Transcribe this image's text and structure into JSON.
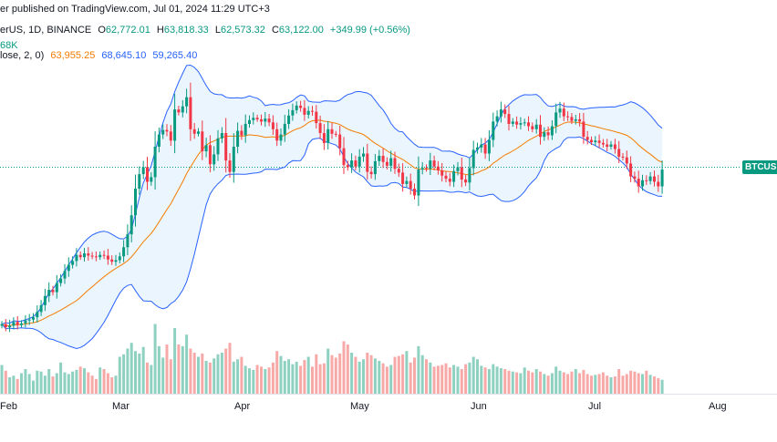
{
  "header": {
    "published": "er published on TradingView.com, Jul 01, 2024 11:29 UTC+3",
    "symbol": "erUS, 1D, BINANCE",
    "open_label": "O",
    "open": "62,772.01",
    "high_label": "H",
    "high": "63,818.33",
    "low_label": "L",
    "low": "62,573.32",
    "close_label": "C",
    "close": "63,122.00",
    "change": "+349.99 (+0.56%)",
    "volume": "68K",
    "bb_label": "lose, 2, 0)",
    "bb_basis": "63,955.25",
    "bb_upper": "68,645.10",
    "bb_lower": "59,265.40"
  },
  "price_tag": "BTCUSD",
  "colors": {
    "up": "#089981",
    "down": "#f23645",
    "basis": "#f57c00",
    "bands": "#2962ff",
    "band_fill": "#e3f2fd"
  },
  "chart_data": {
    "type": "candlestick",
    "x_ticks": [
      "Feb",
      "Mar",
      "Apr",
      "May",
      "Jun",
      "Jul",
      "Aug"
    ],
    "current_price": 63122.0,
    "ylim": [
      37500,
      74000
    ],
    "last_bollinger": {
      "basis": 63955.25,
      "upper": 68645.1,
      "lower": 59265.4
    },
    "closes": [
      42800,
      42400,
      42600,
      43100,
      42700,
      42900,
      43300,
      43400,
      43700,
      44400,
      45300,
      46500,
      47300,
      47000,
      48200,
      48800,
      49800,
      50600,
      51100,
      51900,
      51600,
      52100,
      51800,
      51700,
      51600,
      51900,
      51800,
      51300,
      51000,
      51200,
      51700,
      52900,
      54600,
      57100,
      60600,
      62500,
      63400,
      61500,
      62100,
      66100,
      67700,
      68300,
      68100,
      66900,
      71000,
      70600,
      71400,
      72600,
      68400,
      67800,
      68100,
      65500,
      66300,
      63800,
      65100,
      67200,
      67900,
      64300,
      62800,
      66100,
      68200,
      67600,
      69100,
      69600,
      69900,
      69700,
      69400,
      69800,
      69300,
      68400,
      66900,
      67700,
      69100,
      70200,
      70900,
      71500,
      71200,
      70300,
      70800,
      70700,
      69200,
      67900,
      66600,
      68400,
      67800,
      67700,
      65900,
      63700,
      63400,
      64300,
      63500,
      64800,
      65200,
      62800,
      62500,
      64200,
      64900,
      64100,
      63600,
      64600,
      63200,
      62700,
      61200,
      61600,
      60600,
      59700,
      63100,
      63300,
      63200,
      64300,
      63500,
      63000,
      62300,
      61900,
      61500,
      62900,
      63400,
      61800,
      61400,
      63300,
      65700,
      66000,
      66400,
      65200,
      67000,
      69400,
      70100,
      71000,
      70400,
      69100,
      69400,
      69000,
      69200,
      69300,
      68800,
      68400,
      69000,
      67400,
      68000,
      67600,
      68800,
      70600,
      71100,
      70100,
      70000,
      69500,
      69700,
      69400,
      67400,
      67000,
      66700,
      66900,
      66600,
      66400,
      66100,
      66400,
      65800,
      64800,
      64700,
      63900,
      62200,
      61900,
      60900,
      61700,
      61600,
      62200,
      61500,
      60900,
      63100
    ],
    "volumes": [
      0.35,
      0.28,
      0.2,
      0.22,
      0.18,
      0.25,
      0.3,
      0.24,
      0.16,
      0.28,
      0.27,
      0.22,
      0.3,
      0.21,
      0.25,
      0.38,
      0.26,
      0.24,
      0.27,
      0.29,
      0.33,
      0.31,
      0.26,
      0.22,
      0.18,
      0.32,
      0.3,
      0.25,
      0.2,
      0.22,
      0.45,
      0.48,
      0.55,
      0.62,
      0.52,
      0.49,
      0.57,
      0.38,
      0.35,
      0.85,
      0.58,
      0.44,
      0.6,
      0.42,
      0.8,
      0.6,
      0.58,
      0.72,
      0.55,
      0.5,
      0.45,
      0.49,
      0.4,
      0.38,
      0.43,
      0.48,
      0.5,
      0.55,
      0.62,
      0.39,
      0.42,
      0.45,
      0.34,
      0.31,
      0.29,
      0.35,
      0.33,
      0.3,
      0.32,
      0.38,
      0.52,
      0.46,
      0.4,
      0.42,
      0.36,
      0.39,
      0.34,
      0.41,
      0.45,
      0.33,
      0.48,
      0.36,
      0.37,
      0.55,
      0.47,
      0.44,
      0.49,
      0.64,
      0.6,
      0.5,
      0.45,
      0.39,
      0.42,
      0.5,
      0.47,
      0.43,
      0.4,
      0.37,
      0.33,
      0.35,
      0.45,
      0.46,
      0.48,
      0.52,
      0.38,
      0.44,
      0.58,
      0.47,
      0.42,
      0.38,
      0.33,
      0.34,
      0.35,
      0.37,
      0.32,
      0.35,
      0.33,
      0.3,
      0.36,
      0.38,
      0.45,
      0.42,
      0.34,
      0.32,
      0.3,
      0.36,
      0.33,
      0.31,
      0.3,
      0.28,
      0.27,
      0.26,
      0.25,
      0.32,
      0.28,
      0.26,
      0.3,
      0.27,
      0.24,
      0.22,
      0.25,
      0.33,
      0.28,
      0.26,
      0.24,
      0.27,
      0.3,
      0.25,
      0.29,
      0.24,
      0.22,
      0.23,
      0.24,
      0.26,
      0.22,
      0.2,
      0.21,
      0.3,
      0.22,
      0.24,
      0.28,
      0.27,
      0.25,
      0.24,
      0.28,
      0.23,
      0.21,
      0.19,
      0.17
    ]
  }
}
